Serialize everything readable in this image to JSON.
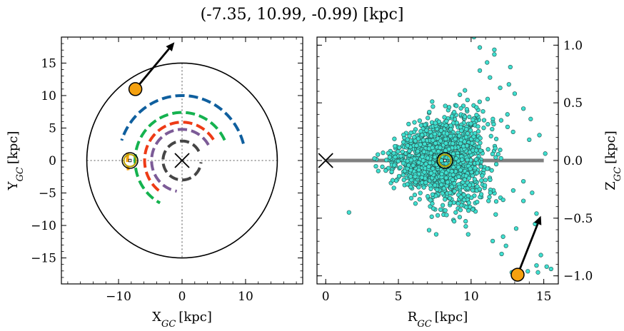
{
  "title": "(-7.35, 10.99, -0.99) [kpc]",
  "chart_data": [
    {
      "type": "scatter",
      "panel": "left",
      "xlabel": "X",
      "xlabel_sub": "GC",
      "xlabel_unit": "[kpc]",
      "ylabel": "Y",
      "ylabel_sub": "GC",
      "ylabel_unit": "[kpc]",
      "xlim": [
        -19,
        19
      ],
      "ylim": [
        -19,
        19
      ],
      "xticks": [
        -10,
        0,
        10
      ],
      "yticks": [
        -15,
        -10,
        -5,
        0,
        5,
        10,
        15
      ],
      "boundary_circle_radius": 15,
      "galactic_center": [
        0,
        0
      ],
      "sun": [
        -8.2,
        0
      ],
      "sun_ring_color": "#b8a000",
      "object": {
        "x": -7.35,
        "y": 10.99,
        "color": "#f5a10f"
      },
      "velocity_arrow_to": [
        -1.2,
        18.2
      ],
      "guide_lines": "dotted at x=0 and y=0",
      "arcs": [
        {
          "color": "#0f5f9e",
          "r": 10.0,
          "from_deg": 15,
          "to_deg": 162
        },
        {
          "color": "#15b24f",
          "r": 7.4,
          "from_deg": 25,
          "to_deg": 242
        },
        {
          "color": "#ee3b16",
          "r": 5.9,
          "from_deg": 33,
          "to_deg": 238
        },
        {
          "color": "#7c5b97",
          "r": 4.8,
          "from_deg": 30,
          "to_deg": 260
        },
        {
          "color": "#454545",
          "r": 3.0,
          "from_deg": 28,
          "to_deg": 355
        },
        {
          "color": "#f5a10f",
          "r": 8.6,
          "from_deg": 172,
          "to_deg": 190
        }
      ]
    },
    {
      "type": "scatter",
      "panel": "right",
      "xlabel": "R",
      "xlabel_sub": "GC",
      "xlabel_unit": "[kpc]",
      "ylabel": "Z",
      "ylabel_sub": "GC",
      "ylabel_unit": "[kpc]",
      "xlim": [
        -0.6,
        16
      ],
      "ylim": [
        -1.07,
        1.07
      ],
      "xticks": [
        0,
        5,
        10,
        15
      ],
      "yticks": [
        -1.0,
        -0.5,
        0.0,
        0.5,
        1.0
      ],
      "ytick_labels": [
        "−1.0",
        "−0.5",
        "0.0",
        "0.5",
        "1.0"
      ],
      "disk_line": {
        "from": 0,
        "to": 15,
        "z": 0,
        "color": "#808080"
      },
      "galactic_center": [
        0,
        0
      ],
      "sun": [
        8.2,
        0
      ],
      "object": {
        "x": 13.2,
        "y": -0.99,
        "color": "#f5a10f"
      },
      "velocity_arrow_to": [
        14.8,
        -0.48
      ],
      "stars": {
        "color": "#3ee0d0",
        "edge": "#2a5f5a",
        "n_core": 1600,
        "core_center_x": 8.0,
        "core_sd_x": 1.55,
        "core_sd_z_base": 0.035,
        "core_sd_z_slope": 0.028,
        "outliers": [
          {
            "x": 1.6,
            "y": -0.45
          },
          {
            "x": 7.6,
            "y": -0.64
          },
          {
            "x": 9.8,
            "y": -0.64
          },
          {
            "x": 10.2,
            "y": 1.07
          },
          {
            "x": 11.6,
            "y": 0.96
          },
          {
            "x": 12.7,
            "y": 0.81
          },
          {
            "x": 12.5,
            "y": 0.4
          },
          {
            "x": 11.3,
            "y": 0.72
          },
          {
            "x": 10.6,
            "y": 0.78
          },
          {
            "x": 12.0,
            "y": 0.63
          },
          {
            "x": 13.0,
            "y": 0.58
          },
          {
            "x": 13.6,
            "y": 0.45
          },
          {
            "x": 14.1,
            "y": 0.36
          },
          {
            "x": 13.6,
            "y": -0.35
          },
          {
            "x": 14.5,
            "y": -0.46
          },
          {
            "x": 14.8,
            "y": -0.82
          },
          {
            "x": 15.2,
            "y": -0.92
          },
          {
            "x": 14.5,
            "y": -0.91
          },
          {
            "x": 13.1,
            "y": -0.59
          },
          {
            "x": 12.4,
            "y": -0.74
          },
          {
            "x": 13.9,
            "y": -0.96
          },
          {
            "x": 12.8,
            "y": -0.97
          },
          {
            "x": 14.6,
            "y": -0.97
          },
          {
            "x": 15.5,
            "y": -0.94
          },
          {
            "x": 12.1,
            "y": -0.81
          },
          {
            "x": 11.6,
            "y": 0.92
          },
          {
            "x": 11.1,
            "y": 0.85
          },
          {
            "x": 10.6,
            "y": 0.98
          },
          {
            "x": 12.9,
            "y": -0.26
          },
          {
            "x": 14.0,
            "y": 0.18
          },
          {
            "x": 14.7,
            "y": 0.22
          },
          {
            "x": 15.1,
            "y": 0.06
          },
          {
            "x": 13.6,
            "y": -0.18
          },
          {
            "x": 12.2,
            "y": -0.66
          },
          {
            "x": 11.2,
            "y": -0.35
          },
          {
            "x": 11.5,
            "y": 0.36
          },
          {
            "x": 14.2,
            "y": -0.28
          },
          {
            "x": 12.6,
            "y": 0.66
          },
          {
            "x": 14.4,
            "y": -0.55
          }
        ]
      }
    }
  ]
}
